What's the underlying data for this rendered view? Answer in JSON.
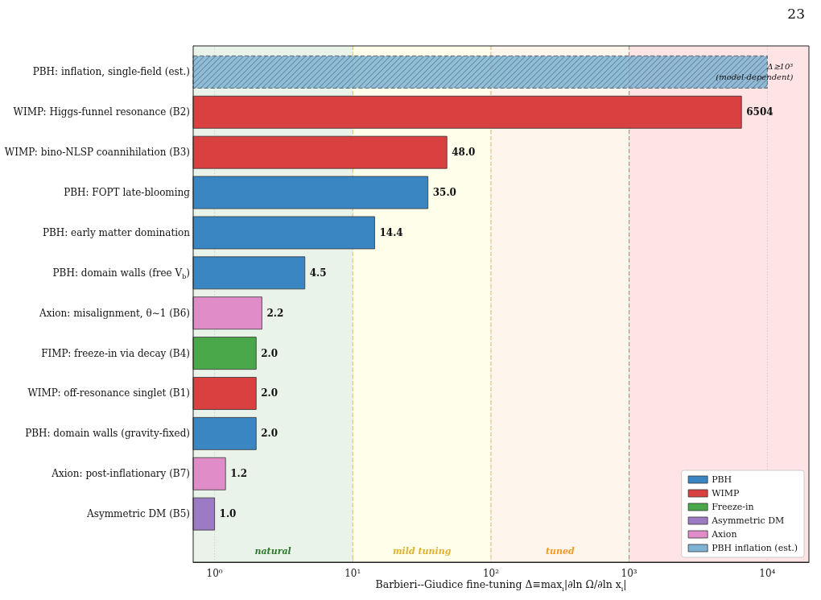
{
  "chart_data": {
    "type": "bar",
    "orientation": "horizontal",
    "log": "x",
    "xlabel": "Barbieri--Giudice fine-tuning  Δ≡max$_{i}$|∂ln Ω/∂ln x$_{i}$|",
    "categories": [
      "PBH: inflation, single-field (est.)",
      "WIMP: Higgs-funnel resonance (B2)",
      "WIMP: bino-NLSP coannihilation (B3)",
      "PBH: FOPT late-blooming",
      "PBH: early matter domination",
      "PBH: domain walls (free V$_{b}$)",
      "Axion: misalignment, θ∼1 (B6)",
      "FIMP: freeze-in via decay (B4)",
      "WIMP: off-resonance singlet (B1)",
      "PBH: domain walls (gravity-fixed)",
      "Axion: post-inflationary (B7)",
      "Asymmetric DM (B5)"
    ],
    "series": [
      {
        "name": "PBH",
        "color": "#3a86c2",
        "values": [
          null,
          null,
          null,
          35.0,
          14.4,
          4.5,
          null,
          null,
          null,
          2.0,
          null,
          null
        ],
        "value_labels": [
          null,
          null,
          null,
          "35.0",
          "14.4",
          "4.5",
          null,
          null,
          null,
          "2.0",
          null,
          null
        ]
      },
      {
        "name": "WIMP",
        "color": "#d94040",
        "values": [
          null,
          6504,
          48.0,
          null,
          null,
          null,
          null,
          null,
          2.0,
          null,
          null,
          null
        ],
        "value_labels": [
          null,
          "6504",
          "48.0",
          null,
          null,
          null,
          null,
          null,
          "2.0",
          null,
          null,
          null
        ]
      },
      {
        "name": "Freeze-in",
        "color": "#4aa84a",
        "values": [
          null,
          null,
          null,
          null,
          null,
          null,
          null,
          2.0,
          null,
          null,
          null,
          null
        ],
        "value_labels": [
          null,
          null,
          null,
          null,
          null,
          null,
          null,
          "2.0",
          null,
          null,
          null,
          null
        ]
      },
      {
        "name": "Asymmetric DM",
        "color": "#9d7bc4",
        "values": [
          null,
          null,
          null,
          null,
          null,
          null,
          null,
          null,
          null,
          null,
          null,
          1.0
        ],
        "value_labels": [
          null,
          null,
          null,
          null,
          null,
          null,
          null,
          null,
          null,
          null,
          null,
          "1.0"
        ]
      },
      {
        "name": "Axion",
        "color": "#e08cc8",
        "values": [
          null,
          null,
          null,
          null,
          null,
          null,
          2.2,
          null,
          null,
          null,
          1.2,
          null
        ],
        "value_labels": [
          null,
          null,
          null,
          null,
          null,
          null,
          "2.2",
          null,
          null,
          null,
          "1.2",
          null
        ]
      },
      {
        "name": "PBH inflation (est.)",
        "color": "#7fb3d3",
        "line_style": "dashed",
        "values": [
          10000,
          null,
          null,
          null,
          null,
          null,
          null,
          null,
          null,
          null,
          null,
          null
        ]
      }
    ],
    "xlim": [
      0.7,
      20000
    ],
    "xticks": [
      {
        "value": 1,
        "label": "10⁰"
      },
      {
        "value": 10,
        "label": "10¹"
      },
      {
        "value": 100,
        "label": "10²"
      },
      {
        "value": 1000,
        "label": "10³"
      },
      {
        "value": 10000,
        "label": "10⁴"
      }
    ],
    "grid": "x",
    "legend": "bottom right",
    "bands": [
      {
        "axis": "x",
        "from": 0.7,
        "to": 10,
        "label": "natural",
        "color": "#e9f3ea"
      },
      {
        "axis": "x",
        "from": 10,
        "to": 100,
        "label": "mild tuning",
        "color": "#fefeea"
      },
      {
        "axis": "x",
        "from": 100,
        "to": 1000,
        "label": "tuned",
        "color": "#fef5ec"
      },
      {
        "axis": "x",
        "from": 1000,
        "to": 20000,
        "color": "#fee4e4"
      }
    ],
    "ref_lines": [
      {
        "axis": "x",
        "value": 10,
        "color": "#e2c26a",
        "line_style": "dashed"
      },
      {
        "axis": "x",
        "value": 100,
        "color": "#f0b878",
        "line_style": "dashed"
      },
      {
        "axis": "x",
        "value": 1000,
        "color": "#d07070",
        "line_style": "dashed"
      }
    ],
    "annotations": [
      {
        "text": "Δ≳10³\n(model-dependent)",
        "x": 10000,
        "y": "PBH: inflation, single-field (est.)"
      },
      "23"
    ]
  }
}
